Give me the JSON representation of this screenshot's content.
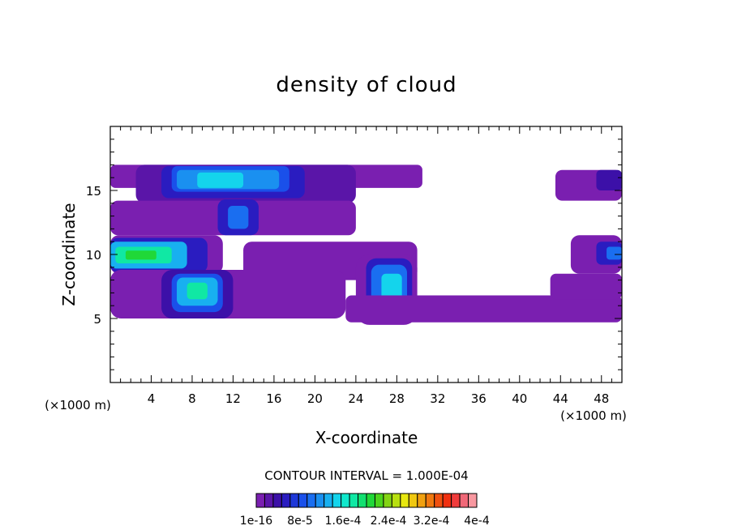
{
  "chart_data": {
    "type": "heatmap",
    "title": "density of cloud",
    "xlabel": "X-coordinate",
    "ylabel": "Z-coordinate",
    "x_unit": "(×1000 m)",
    "y_unit": "(×1000 m)",
    "xlim": [
      0,
      50
    ],
    "ylim": [
      0,
      20
    ],
    "x_ticks": [
      "4",
      "8",
      "12",
      "16",
      "20",
      "24",
      "28",
      "32",
      "36",
      "40",
      "44",
      "48"
    ],
    "y_ticks": [
      "5",
      "10",
      "15"
    ],
    "contour_interval": "CONTOUR INTERVAL = 1.000E-04",
    "colorbar_labels": [
      "1e-16",
      "8e-5",
      "1.6e-4",
      "2.4e-4",
      "3.2e-4",
      "4e-4"
    ],
    "colorbar_colors": [
      "#7a1fb0",
      "#5a15a8",
      "#3c10a8",
      "#2a1cc0",
      "#1e38d8",
      "#1a50ea",
      "#1a6ef0",
      "#1a90f0",
      "#18b0f0",
      "#14d4ec",
      "#10e8cc",
      "#10e8a4",
      "#12e070",
      "#20d838",
      "#4cd41c",
      "#84d414",
      "#b8e010",
      "#e8e810",
      "#f0c810",
      "#f0a010",
      "#f07810",
      "#f05010",
      "#f03010",
      "#f03c3c",
      "#f06878",
      "#f898a0"
    ],
    "cloud_regions": [
      {
        "x0": 0,
        "x1": 30.5,
        "z0": 15.2,
        "z1": 17.0,
        "density_index": 0
      },
      {
        "x0": 2.5,
        "x1": 24,
        "z0": 14.0,
        "z1": 17.0,
        "density_index": 1
      },
      {
        "x0": 5,
        "x1": 19,
        "z0": 14.4,
        "z1": 16.9,
        "density_index": 3
      },
      {
        "x0": 6,
        "x1": 17.5,
        "z0": 14.9,
        "z1": 16.9,
        "density_index": 5
      },
      {
        "x0": 6.5,
        "x1": 16.5,
        "z0": 15.1,
        "z1": 16.6,
        "density_index": 7
      },
      {
        "x0": 8.5,
        "x1": 13,
        "z0": 15.2,
        "z1": 16.4,
        "density_index": 9
      },
      {
        "x0": 0,
        "x1": 24,
        "z0": 11.5,
        "z1": 14.2,
        "density_index": 0
      },
      {
        "x0": 10.5,
        "x1": 14.5,
        "z0": 11.5,
        "z1": 14.3,
        "density_index": 3
      },
      {
        "x0": 11.5,
        "x1": 13.5,
        "z0": 12.0,
        "z1": 13.8,
        "density_index": 6
      },
      {
        "x0": 0,
        "x1": 11,
        "z0": 8.5,
        "z1": 11.5,
        "density_index": 0
      },
      {
        "x0": 0,
        "x1": 9.5,
        "z0": 8.6,
        "z1": 11.3,
        "density_index": 3
      },
      {
        "x0": 0,
        "x1": 7.5,
        "z0": 8.9,
        "z1": 11.0,
        "density_index": 8
      },
      {
        "x0": 0.5,
        "x1": 6,
        "z0": 9.3,
        "z1": 10.6,
        "density_index": 11
      },
      {
        "x0": 1.5,
        "x1": 4.5,
        "z0": 9.6,
        "z1": 10.3,
        "density_index": 13
      },
      {
        "x0": 13,
        "x1": 30,
        "z0": 8.0,
        "z1": 11.0,
        "density_index": 0
      },
      {
        "x0": 0,
        "x1": 23,
        "z0": 5.0,
        "z1": 8.8,
        "density_index": 0
      },
      {
        "x0": 5,
        "x1": 12,
        "z0": 5.0,
        "z1": 8.8,
        "density_index": 2
      },
      {
        "x0": 6,
        "x1": 11,
        "z0": 5.5,
        "z1": 8.5,
        "density_index": 5
      },
      {
        "x0": 6.5,
        "x1": 10.5,
        "z0": 6.0,
        "z1": 8.2,
        "density_index": 8
      },
      {
        "x0": 7.5,
        "x1": 9.5,
        "z0": 6.5,
        "z1": 7.8,
        "density_index": 11
      },
      {
        "x0": 24,
        "x1": 30,
        "z0": 4.5,
        "z1": 10.0,
        "density_index": 0
      },
      {
        "x0": 25,
        "x1": 29.5,
        "z0": 5.0,
        "z1": 9.7,
        "density_index": 3
      },
      {
        "x0": 25.5,
        "x1": 29,
        "z0": 5.5,
        "z1": 9.2,
        "density_index": 6
      },
      {
        "x0": 26.5,
        "x1": 28.5,
        "z0": 6.0,
        "z1": 8.5,
        "density_index": 9
      },
      {
        "x0": 23,
        "x1": 50,
        "z0": 4.7,
        "z1": 6.8,
        "density_index": 0
      },
      {
        "x0": 43,
        "x1": 50,
        "z0": 6.5,
        "z1": 8.5,
        "density_index": 0
      },
      {
        "x0": 45,
        "x1": 50,
        "z0": 8.5,
        "z1": 11.5,
        "density_index": 0
      },
      {
        "x0": 47.5,
        "x1": 50,
        "z0": 9.2,
        "z1": 11.0,
        "density_index": 3
      },
      {
        "x0": 48.5,
        "x1": 50,
        "z0": 9.6,
        "z1": 10.6,
        "density_index": 6
      },
      {
        "x0": 43.5,
        "x1": 50,
        "z0": 14.2,
        "z1": 16.6,
        "density_index": 0
      },
      {
        "x0": 47.5,
        "x1": 50,
        "z0": 15.0,
        "z1": 16.6,
        "density_index": 2
      }
    ]
  }
}
